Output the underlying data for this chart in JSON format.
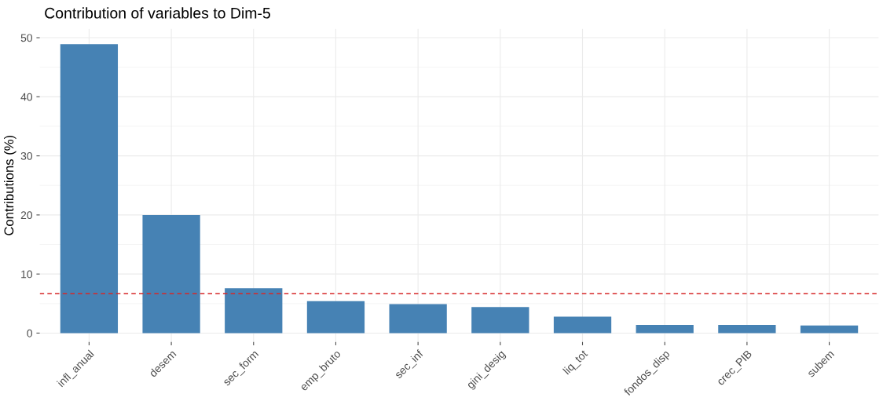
{
  "chart_data": {
    "type": "bar",
    "title": "Contribution of variables to Dim-5",
    "ylabel": "Contributions (%)",
    "categories": [
      "infl_anual",
      "desem",
      "sec_form",
      "emp_bruto",
      "sec_inf",
      "gini_desig",
      "liq_tot",
      "fondos_disp",
      "crec_PIB",
      "subem"
    ],
    "values": [
      48.9,
      20.0,
      7.6,
      5.4,
      4.9,
      4.4,
      2.8,
      1.4,
      1.4,
      1.3
    ],
    "color": "#4682b4",
    "ylim": [
      -1.5,
      51.5
    ],
    "yticks": [
      0,
      10,
      20,
      30,
      40,
      50
    ],
    "grid": true,
    "ref_lines": [
      {
        "axis": "y",
        "value": 6.67,
        "color": "#d62728",
        "line_style": "dashed"
      }
    ]
  }
}
